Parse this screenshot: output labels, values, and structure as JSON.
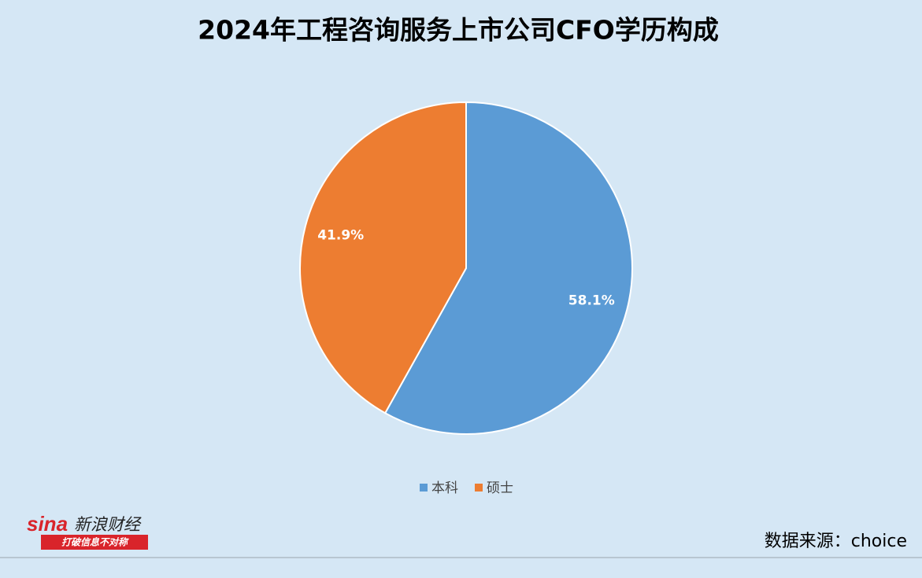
{
  "chart_data": {
    "type": "pie",
    "title": "2024年工程咨询服务上市公司CFO学历构成",
    "categories": [
      "本科",
      "硕士"
    ],
    "values": [
      58.1,
      41.9
    ],
    "value_labels": [
      "58.1%",
      "41.9%"
    ],
    "colors": [
      "#5b9bd5",
      "#ed7d31"
    ]
  },
  "source": "数据来源：choice",
  "logo": {
    "brand": "sina",
    "name": "新浪财经",
    "slogan": "打破信息不对称"
  }
}
